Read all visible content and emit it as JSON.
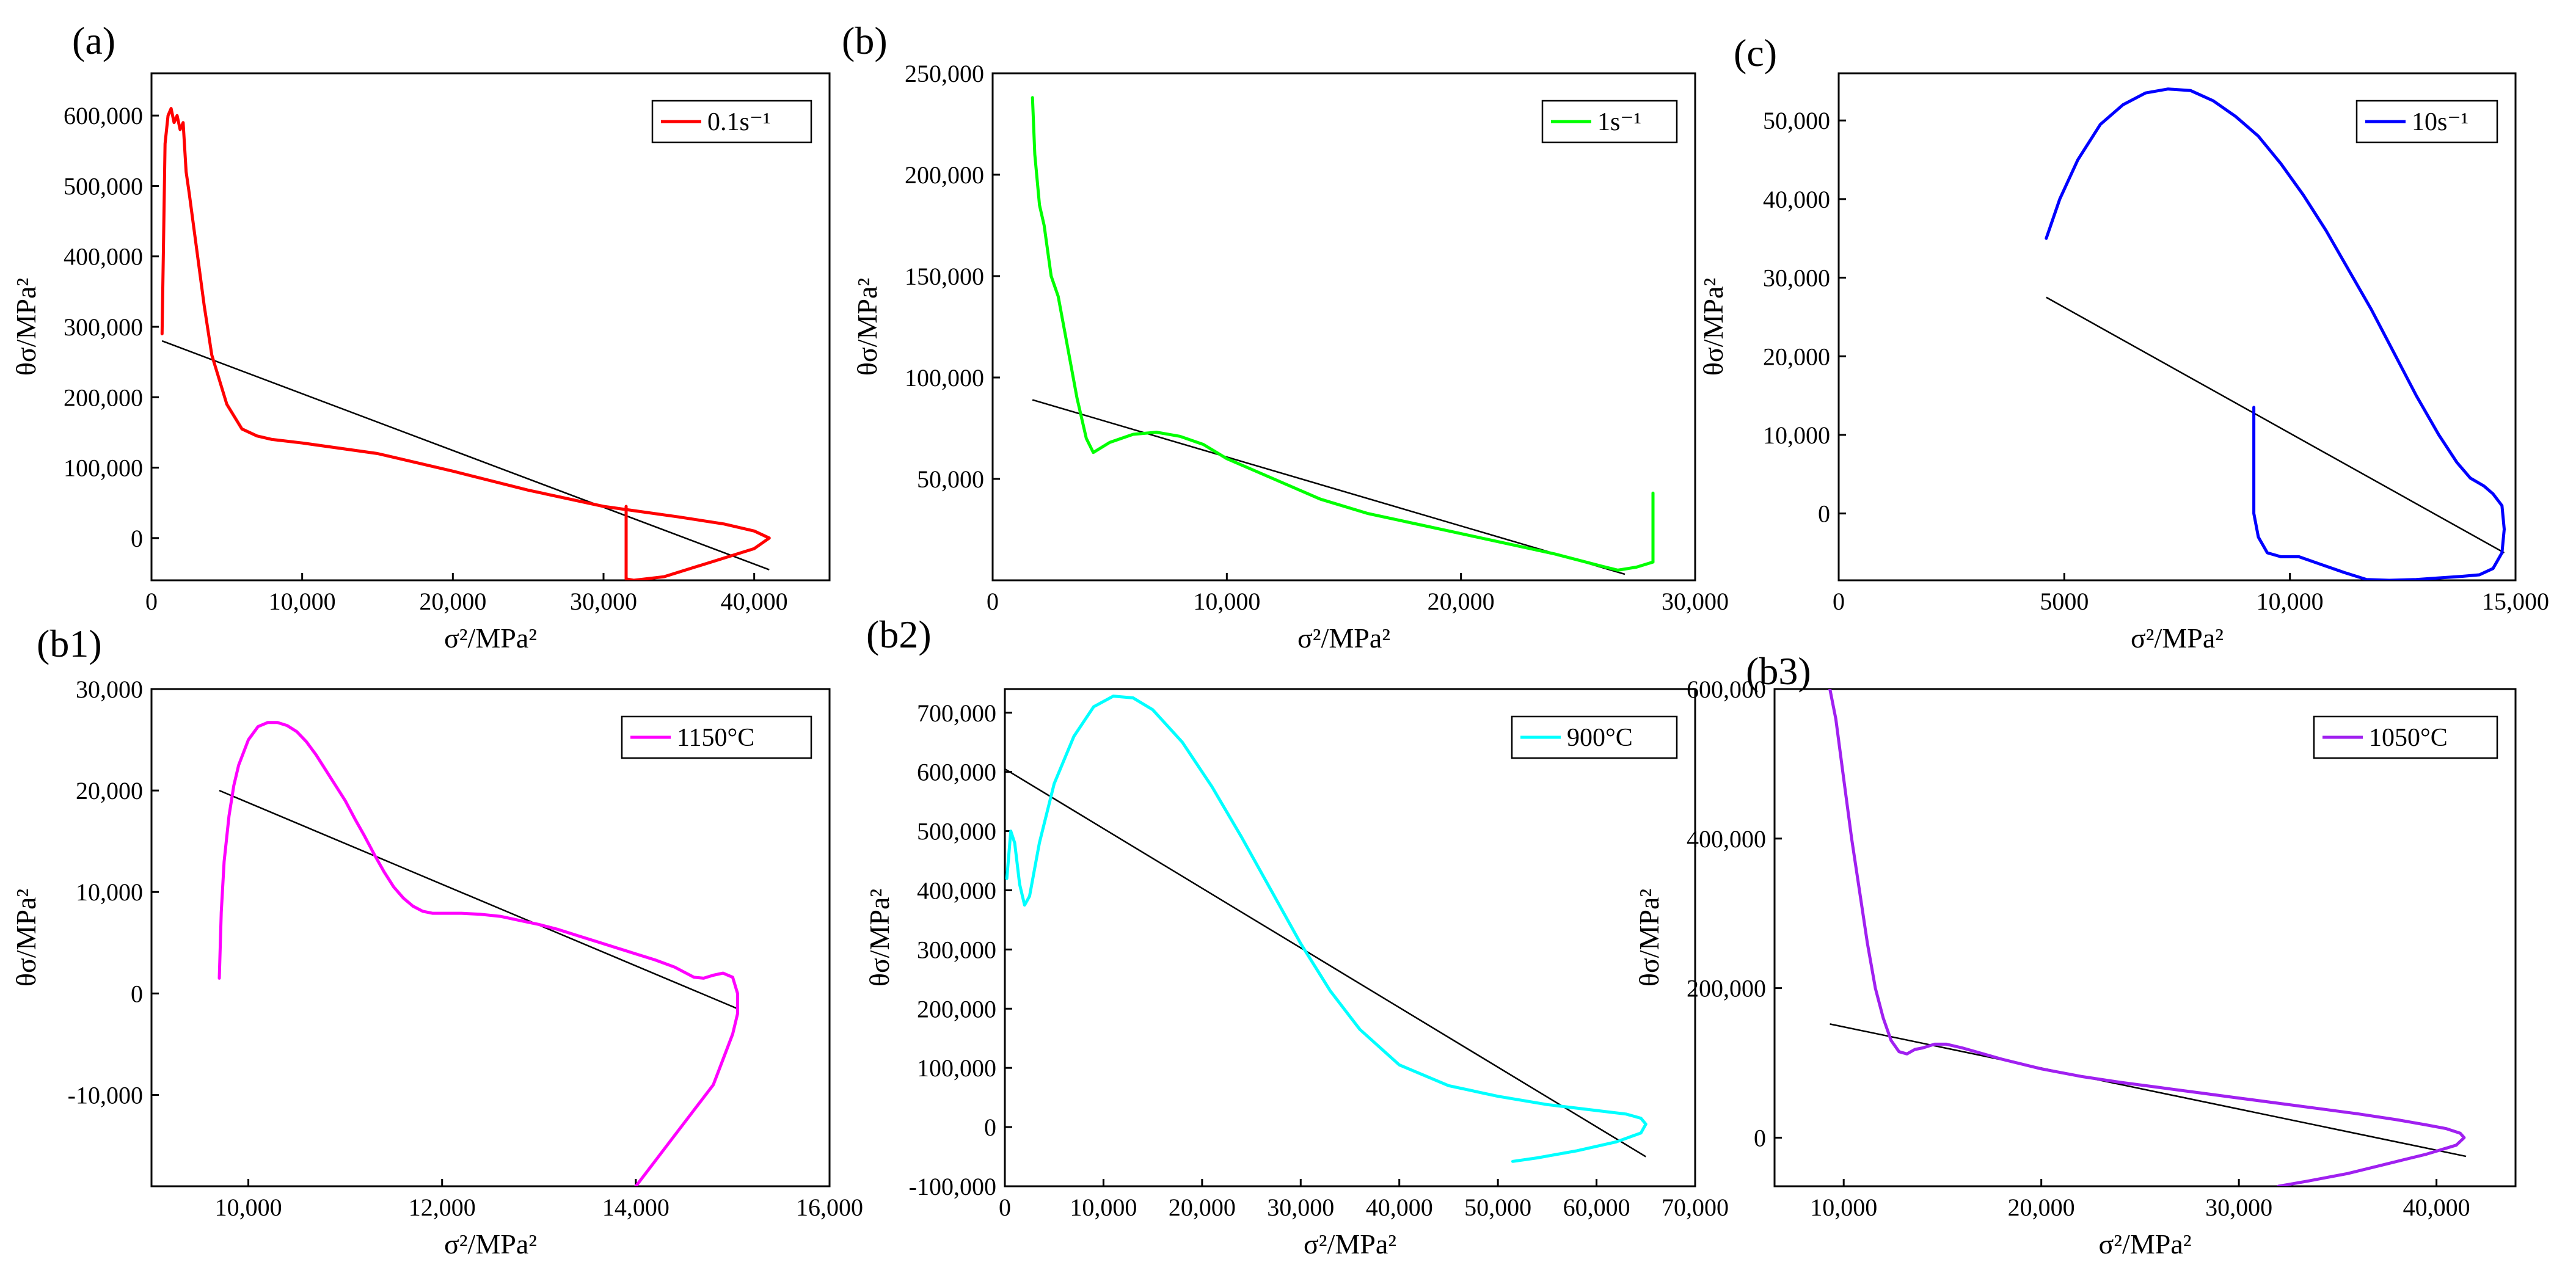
{
  "figure": {
    "background": "#ffffff",
    "fit_line_color": "#000000"
  },
  "chart_data": [
    {
      "id": "a",
      "type": "line",
      "panel_label": "(a)",
      "xlabel": "σ²/MPa²",
      "ylabel": "θσ/MPa²",
      "xlim": [
        0,
        45000
      ],
      "ylim": [
        -60000,
        660000
      ],
      "xticks": [
        0,
        10000,
        20000,
        30000,
        40000
      ],
      "xticklabels": [
        "0",
        "10,000",
        "20,000",
        "30,000",
        "40,000"
      ],
      "yticks": [
        0,
        100000,
        200000,
        300000,
        400000,
        500000,
        600000
      ],
      "yticklabels": [
        "0",
        "100,000",
        "200,000",
        "300,000",
        "400,000",
        "500,000",
        "600,000"
      ],
      "legend": {
        "label": "0.1s⁻¹",
        "position": "top-right"
      },
      "series": [
        {
          "name": "0.1s⁻¹",
          "color": "#ff0000",
          "x": [
            700,
            800,
            900,
            1100,
            1300,
            1500,
            1700,
            1900,
            2100,
            2300,
            2500,
            3000,
            3500,
            4000,
            5000,
            6000,
            7000,
            8000,
            10000,
            15000,
            20000,
            25000,
            30000,
            35000,
            38000,
            40000,
            41000,
            40000,
            37000,
            34000,
            32000,
            31500,
            31500,
            31500
          ],
          "y": [
            290000,
            420000,
            560000,
            600000,
            610000,
            590000,
            600000,
            580000,
            590000,
            520000,
            490000,
            410000,
            330000,
            260000,
            190000,
            155000,
            145000,
            140000,
            135000,
            120000,
            95000,
            68000,
            45000,
            30000,
            20000,
            10000,
            0,
            -15000,
            -35000,
            -55000,
            -60000,
            -58000,
            0,
            45000
          ]
        }
      ],
      "fit_line": {
        "x": [
          700,
          41000
        ],
        "y": [
          280000,
          -45000
        ]
      }
    },
    {
      "id": "b",
      "type": "line",
      "panel_label": "(b)",
      "xlabel": "σ²/MPa²",
      "ylabel": "θσ/MPa²",
      "xlim": [
        0,
        30000
      ],
      "ylim": [
        0,
        250000
      ],
      "xticks": [
        0,
        10000,
        20000,
        30000
      ],
      "xticklabels": [
        "0",
        "10,000",
        "20,000",
        "30,000"
      ],
      "yticks": [
        50000,
        100000,
        150000,
        200000,
        250000
      ],
      "yticklabels": [
        "50,000",
        "100,000",
        "150,000",
        "200,000",
        "250,000"
      ],
      "legend": {
        "label": "1s⁻¹",
        "position": "top-right"
      },
      "series": [
        {
          "name": "1s⁻¹",
          "color": "#00ff00",
          "x": [
            1700,
            1800,
            2000,
            2200,
            2500,
            2800,
            3200,
            3600,
            4000,
            4300,
            5000,
            6000,
            7000,
            8000,
            9000,
            10000,
            12000,
            14000,
            16000,
            18000,
            20000,
            22000,
            24000,
            26000,
            26700,
            27500,
            28200,
            28200
          ],
          "y": [
            238000,
            210000,
            185000,
            175000,
            150000,
            140000,
            115000,
            90000,
            70000,
            63000,
            68000,
            72000,
            73000,
            71000,
            67000,
            60000,
            50000,
            40000,
            33000,
            28000,
            23000,
            18000,
            13000,
            7000,
            5000,
            6500,
            9000,
            43000
          ]
        }
      ],
      "fit_line": {
        "x": [
          1700,
          27000
        ],
        "y": [
          89000,
          3000
        ]
      }
    },
    {
      "id": "c",
      "type": "line",
      "panel_label": "(c)",
      "xlabel": "σ²/MPa²",
      "ylabel": "θσ/MPa²",
      "xlim": [
        0,
        15000
      ],
      "ylim": [
        -8500,
        56000
      ],
      "xticks": [
        0,
        5000,
        10000,
        15000
      ],
      "xticklabels": [
        "0",
        "5000",
        "10,000",
        "15,000"
      ],
      "yticks": [
        0,
        10000,
        20000,
        30000,
        40000,
        50000
      ],
      "yticklabels": [
        "0",
        "10,000",
        "20,000",
        "30,000",
        "40,000",
        "50,000"
      ],
      "legend": {
        "label": "10s⁻¹",
        "position": "top-right"
      },
      "series": [
        {
          "name": "10s⁻¹",
          "color": "#0000ff",
          "x": [
            4600,
            4900,
            5300,
            5800,
            6300,
            6800,
            7300,
            7800,
            8300,
            8800,
            9300,
            9800,
            10300,
            10800,
            11300,
            11800,
            12300,
            12800,
            13300,
            13700,
            14000,
            14300,
            14500,
            14700,
            14750,
            14700,
            14500,
            14200,
            13800,
            13300,
            12800,
            12200,
            11700,
            11200,
            10700,
            10200,
            9800,
            9500,
            9300,
            9200,
            9200
          ],
          "y": [
            35000,
            40000,
            45000,
            49500,
            52000,
            53500,
            54000,
            53800,
            52500,
            50500,
            48000,
            44500,
            40500,
            36000,
            31000,
            26000,
            20500,
            15000,
            10000,
            6500,
            4500,
            3500,
            2500,
            1000,
            -2000,
            -5000,
            -7000,
            -7800,
            -8000,
            -8200,
            -8400,
            -8500,
            -8400,
            -7500,
            -6500,
            -5500,
            -5500,
            -5000,
            -3000,
            0,
            13500
          ]
        }
      ],
      "fit_line": {
        "x": [
          4600,
          14750
        ],
        "y": [
          27500,
          -5000
        ]
      }
    },
    {
      "id": "b1",
      "type": "line",
      "panel_label": "(b1)",
      "xlabel": "σ²/MPa²",
      "ylabel": "θσ/MPa²",
      "xlim": [
        9000,
        16000
      ],
      "ylim": [
        -19000,
        30000
      ],
      "xticks": [
        10000,
        12000,
        14000,
        16000
      ],
      "xticklabels": [
        "10,000",
        "12,000",
        "14,000",
        "16,000"
      ],
      "yticks": [
        -10000,
        0,
        10000,
        20000,
        30000
      ],
      "yticklabels": [
        "-10,000",
        "0",
        "10,000",
        "20,000",
        "30,000"
      ],
      "legend": {
        "label": "1150°C",
        "position": "top-right"
      },
      "series": [
        {
          "name": "1150°C",
          "color": "#ff00ff",
          "x": [
            9700,
            9720,
            9750,
            9800,
            9850,
            9900,
            10000,
            10100,
            10200,
            10300,
            10400,
            10500,
            10600,
            10700,
            10800,
            10900,
            11000,
            11100,
            11200,
            11300,
            11400,
            11500,
            11600,
            11700,
            11800,
            11900,
            12000,
            12200,
            12400,
            12600,
            12800,
            13000,
            13200,
            13400,
            13600,
            13800,
            14000,
            14200,
            14400,
            14600,
            14700,
            14800,
            14900,
            15000,
            15050,
            15050,
            15000,
            14900,
            14800,
            14600,
            14400,
            14200,
            14000
          ],
          "y": [
            1500,
            8000,
            13000,
            17500,
            20500,
            22500,
            25000,
            26300,
            26700,
            26700,
            26400,
            25800,
            24800,
            23500,
            22000,
            20500,
            19000,
            17200,
            15500,
            13700,
            12000,
            10500,
            9400,
            8600,
            8100,
            7900,
            7900,
            7900,
            7800,
            7600,
            7200,
            6800,
            6300,
            5700,
            5100,
            4500,
            3900,
            3300,
            2600,
            1600,
            1500,
            1800,
            2000,
            1600,
            0,
            -2000,
            -4000,
            -6500,
            -9000,
            -11500,
            -14000,
            -16500,
            -19000
          ]
        }
      ],
      "fit_line": {
        "x": [
          9700,
          15050
        ],
        "y": [
          20000,
          -1500
        ]
      }
    },
    {
      "id": "b2",
      "type": "line",
      "panel_label": "(b2)",
      "xlabel": "σ²/MPa²",
      "ylabel": "θσ/MPa²",
      "xlim": [
        0,
        70000
      ],
      "ylim": [
        -100000,
        740000
      ],
      "xticks": [
        0,
        10000,
        20000,
        30000,
        40000,
        50000,
        60000,
        70000
      ],
      "xticklabels": [
        "0",
        "10,000",
        "20,000",
        "30,000",
        "40,000",
        "50,000",
        "60,000",
        "70,000"
      ],
      "yticks": [
        -100000,
        0,
        100000,
        200000,
        300000,
        400000,
        500000,
        600000,
        700000
      ],
      "yticklabels": [
        "-100,000",
        "0",
        "100,000",
        "200,000",
        "300,000",
        "400,000",
        "500,000",
        "600,000",
        "700,000"
      ],
      "legend": {
        "label": "900°C",
        "position": "top-right"
      },
      "series": [
        {
          "name": "900°C",
          "color": "#00ffff",
          "x": [
            200,
            600,
            1000,
            1500,
            2000,
            2500,
            3500,
            5000,
            7000,
            9000,
            11000,
            13000,
            15000,
            18000,
            21000,
            24000,
            27000,
            30000,
            33000,
            36000,
            40000,
            45000,
            50000,
            55000,
            60000,
            63000,
            64500,
            65000,
            64500,
            62000,
            58000,
            54000,
            51500
          ],
          "y": [
            420000,
            500000,
            480000,
            410000,
            375000,
            390000,
            480000,
            580000,
            660000,
            710000,
            728000,
            725000,
            705000,
            650000,
            575000,
            490000,
            400000,
            310000,
            230000,
            165000,
            105000,
            70000,
            52000,
            38000,
            28000,
            22000,
            15000,
            5000,
            -10000,
            -25000,
            -40000,
            -52000,
            -58000
          ]
        }
      ],
      "fit_line": {
        "x": [
          0,
          65000
        ],
        "y": [
          605000,
          -50000
        ]
      }
    },
    {
      "id": "b3",
      "type": "line",
      "panel_label": "(b3)",
      "xlabel": "σ²/MPa²",
      "ylabel": "θσ/MPa²",
      "xlim": [
        6500,
        44000
      ],
      "ylim": [
        -65000,
        600000
      ],
      "xticks": [
        10000,
        20000,
        30000,
        40000
      ],
      "xticklabels": [
        "10,000",
        "20,000",
        "30,000",
        "40,000"
      ],
      "yticks": [
        0,
        200000,
        400000,
        600000
      ],
      "yticklabels": [
        "0",
        "200,000",
        "400,000",
        "600,000"
      ],
      "legend": {
        "label": "1050°C",
        "position": "top-right"
      },
      "series": [
        {
          "name": "1050°C",
          "color": "#a020f0",
          "x": [
            9300,
            9600,
            10000,
            10400,
            10800,
            11200,
            11600,
            12000,
            12400,
            12800,
            13200,
            13600,
            14000,
            14600,
            15200,
            16000,
            18000,
            20000,
            22000,
            24000,
            26000,
            28000,
            30000,
            32000,
            34000,
            36000,
            38000,
            39500,
            40500,
            41200,
            41400,
            41000,
            39500,
            37500,
            35500,
            33500,
            32000
          ],
          "y": [
            600000,
            560000,
            480000,
            400000,
            330000,
            260000,
            200000,
            160000,
            130000,
            115000,
            112000,
            118000,
            120000,
            125000,
            125000,
            120000,
            105000,
            92000,
            82000,
            74000,
            67000,
            60000,
            53000,
            46000,
            39000,
            32000,
            24000,
            17000,
            12000,
            6000,
            0,
            -10000,
            -22000,
            -35000,
            -48000,
            -58000,
            -65000
          ]
        }
      ],
      "fit_line": {
        "x": [
          9300,
          41500
        ],
        "y": [
          152000,
          -25000
        ]
      }
    }
  ]
}
